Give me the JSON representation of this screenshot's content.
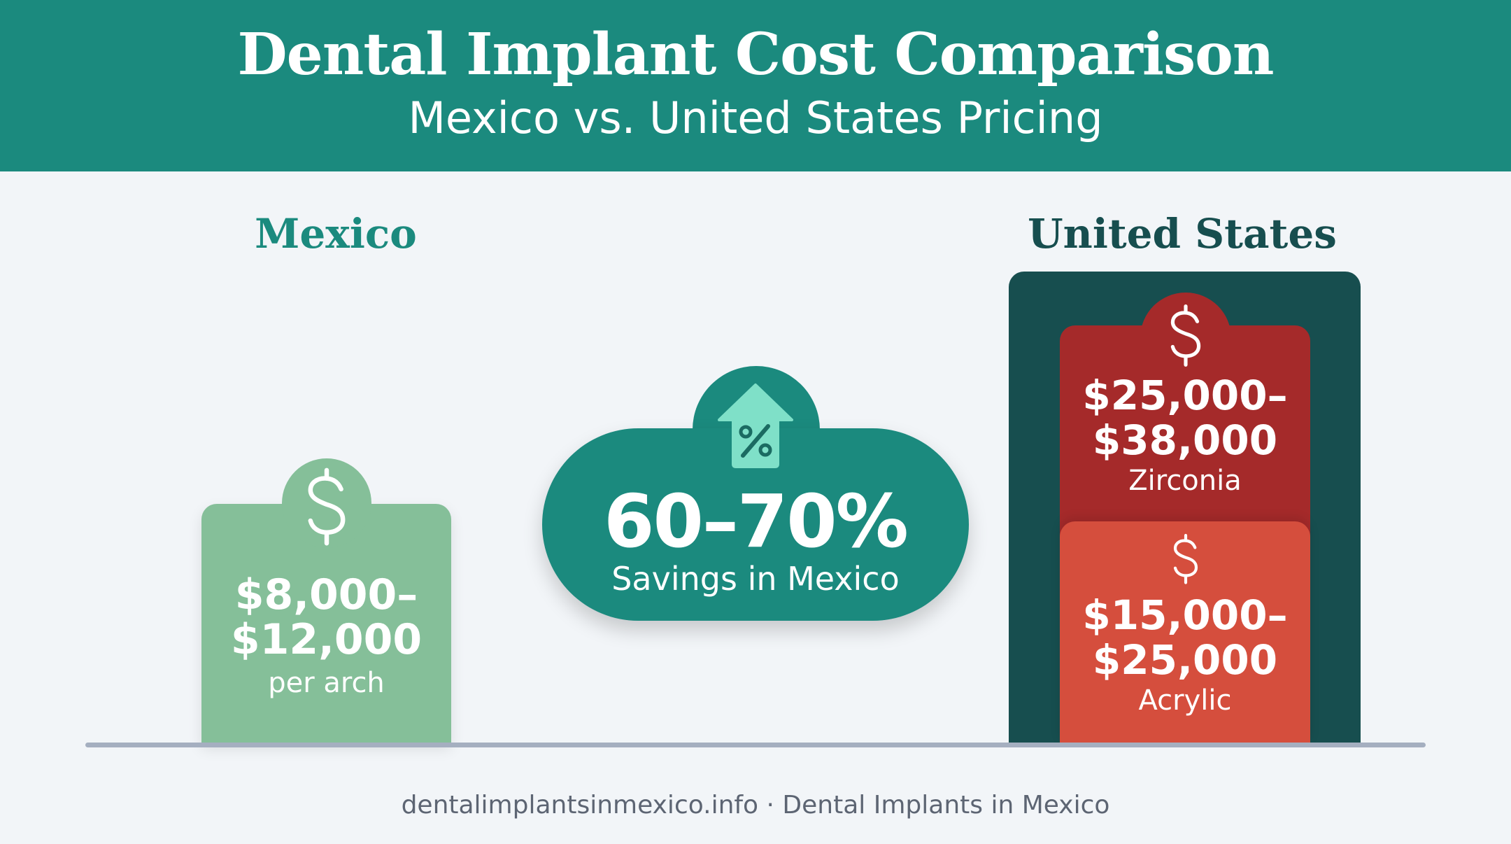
{
  "header": {
    "title": "Dental Implant Cost Comparison",
    "subtitle": "Mexico vs. United States Pricing"
  },
  "mexico": {
    "label": "Mexico",
    "price_line1": "$8,000–",
    "price_line2": "$12,000",
    "unit": "per arch",
    "icon": "dollar-icon",
    "color": "#85bf99"
  },
  "savings": {
    "value": "60–70%",
    "label": "Savings in Mexico",
    "icon": "house-percent-icon",
    "color": "#1b8a7e"
  },
  "united_states": {
    "label": "United States",
    "frame_color": "#174e4f",
    "zirconia": {
      "price_line1": "$25,000–",
      "price_line2": "$38,000",
      "type": "Zirconia",
      "icon": "dollar-icon",
      "color": "#a52a2a"
    },
    "acrylic": {
      "price_line1": "$15,000–",
      "price_line2": "$25,000",
      "type": "Acrylic",
      "icon": "dollar-icon",
      "color": "#d54e3d"
    }
  },
  "footer": {
    "text": "dentalimplantsinmexico.info · Dental Implants in Mexico"
  },
  "colors": {
    "header_bg": "#1b8a7e",
    "page_bg": "#f2f5f8",
    "baseline": "#a5afc0"
  }
}
